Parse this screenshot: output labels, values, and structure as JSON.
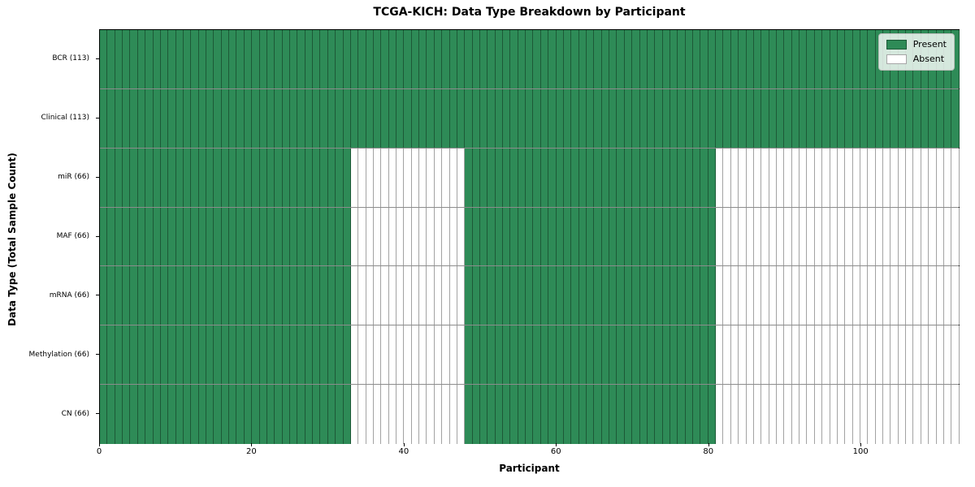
{
  "chart_data": {
    "type": "heatmap",
    "title": "TCGA-KICH: Data Type Breakdown by Participant",
    "xlabel": "Participant",
    "ylabel": "Data Type (Total Sample Count)",
    "n_participants": 113,
    "xlim": [
      0,
      113
    ],
    "x_ticks": [
      0,
      20,
      40,
      60,
      80,
      100
    ],
    "grid": false,
    "legend_position": "upper right",
    "colors": {
      "present": "#2E8B57",
      "absent": "#FFFFFF"
    },
    "legend": [
      {
        "label": "Present",
        "state": "present"
      },
      {
        "label": "Absent",
        "state": "absent"
      }
    ],
    "rows": [
      {
        "label": "BCR (113)",
        "total": 113,
        "segments": [
          {
            "start": 0,
            "end": 113,
            "present": true
          }
        ]
      },
      {
        "label": "Clinical (113)",
        "total": 113,
        "segments": [
          {
            "start": 0,
            "end": 113,
            "present": true
          }
        ]
      },
      {
        "label": "miR (66)",
        "total": 66,
        "segments": [
          {
            "start": 0,
            "end": 33,
            "present": true
          },
          {
            "start": 33,
            "end": 48,
            "present": false
          },
          {
            "start": 48,
            "end": 81,
            "present": true
          },
          {
            "start": 81,
            "end": 113,
            "present": false
          }
        ]
      },
      {
        "label": "MAF (66)",
        "total": 66,
        "segments": [
          {
            "start": 0,
            "end": 33,
            "present": true
          },
          {
            "start": 33,
            "end": 48,
            "present": false
          },
          {
            "start": 48,
            "end": 81,
            "present": true
          },
          {
            "start": 81,
            "end": 113,
            "present": false
          }
        ]
      },
      {
        "label": "mRNA (66)",
        "total": 66,
        "segments": [
          {
            "start": 0,
            "end": 33,
            "present": true
          },
          {
            "start": 33,
            "end": 48,
            "present": false
          },
          {
            "start": 48,
            "end": 81,
            "present": true
          },
          {
            "start": 81,
            "end": 113,
            "present": false
          }
        ]
      },
      {
        "label": "Methylation (66)",
        "total": 66,
        "segments": [
          {
            "start": 0,
            "end": 33,
            "present": true
          },
          {
            "start": 33,
            "end": 48,
            "present": false
          },
          {
            "start": 48,
            "end": 81,
            "present": true
          },
          {
            "start": 81,
            "end": 113,
            "present": false
          }
        ]
      },
      {
        "label": "CN (66)",
        "total": 66,
        "segments": [
          {
            "start": 0,
            "end": 33,
            "present": true
          },
          {
            "start": 33,
            "end": 48,
            "present": false
          },
          {
            "start": 48,
            "end": 81,
            "present": true
          },
          {
            "start": 81,
            "end": 113,
            "present": false
          }
        ]
      }
    ]
  }
}
